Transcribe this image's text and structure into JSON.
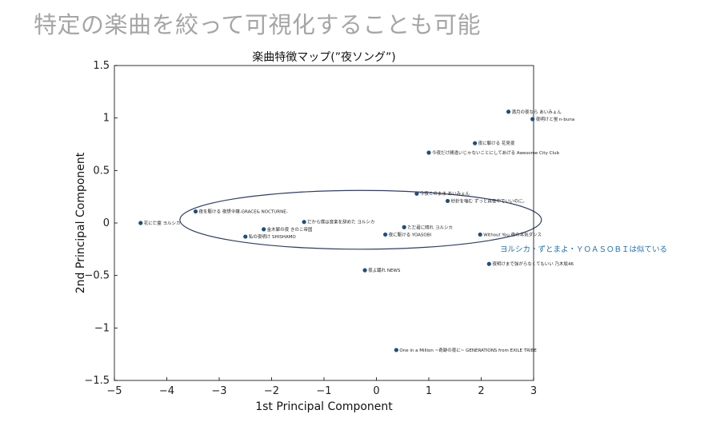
{
  "heading": "特定の楽曲を絞って可視化することも可能",
  "chart_data": {
    "type": "scatter",
    "title": "楽曲特徴マップ(”夜ソング”)",
    "xlabel": "1st Principal Component",
    "ylabel": "2nd Principal Component",
    "xlim": [
      -5,
      3
    ],
    "ylim": [
      -1.5,
      1.5
    ],
    "xticks": [
      -5,
      -4,
      -3,
      -2,
      -1,
      0,
      1,
      2,
      3
    ],
    "yticks": [
      -1.5,
      -1,
      -0.5,
      0,
      0.5,
      1,
      1.5
    ],
    "marker_color": "#1f4e79",
    "points": [
      {
        "x": 2.52,
        "y": 1.06,
        "label": "満月の夜なら あいみょん"
      },
      {
        "x": 2.98,
        "y": 0.99,
        "label": "夜明けと蛍 n-buna"
      },
      {
        "x": 1.88,
        "y": 0.76,
        "label": "夜に駆ける 花見夜"
      },
      {
        "x": 1.0,
        "y": 0.67,
        "label": "今夜だけ間違いじゃないことにしてあげる Awesome City Club"
      },
      {
        "x": 0.77,
        "y": 0.28,
        "label": "今夜このまま あいみょん"
      },
      {
        "x": 1.36,
        "y": 0.21,
        "label": "秒針を噛む ずっと真夜中でいいのに。"
      },
      {
        "x": -4.5,
        "y": 0.0,
        "label": "花に亡霊 ヨルシカ"
      },
      {
        "x": -3.45,
        "y": 0.11,
        "label": "夜を駆ける 夜想令嬢-GRACE& NOCTURNE-"
      },
      {
        "x": -1.38,
        "y": 0.01,
        "label": "だから僕は音楽を辞めた ヨルシカ"
      },
      {
        "x": -2.15,
        "y": -0.06,
        "label": "金木犀の夜 きのこ帝国"
      },
      {
        "x": -2.5,
        "y": -0.13,
        "label": "私の夜明け SHISHAMO"
      },
      {
        "x": 0.53,
        "y": -0.04,
        "label": "ただ君に晴れ ヨルシカ"
      },
      {
        "x": 0.17,
        "y": -0.11,
        "label": "夜に駆ける YOASOBI"
      },
      {
        "x": 1.98,
        "y": -0.11,
        "label": "Without You 夜の本気ダンス"
      },
      {
        "x": 2.15,
        "y": -0.39,
        "label": "夜明けまで強がらなくてもいい 乃木坂46"
      },
      {
        "x": -0.22,
        "y": -0.45,
        "label": "夜よ踊れ NEWS"
      },
      {
        "x": 0.38,
        "y": -1.21,
        "label": "One in a Million ~奇跡の夜に~ GENERATIONS from EXILE TRIBE"
      }
    ],
    "annotation": "ヨルシカ・ずとまよ・ＹＯＡＳＯＢＩは似ている",
    "highlight": {
      "shape": "ellipse",
      "cx": -0.3,
      "cy": 0.03,
      "rx": 3.45,
      "ry": 0.28,
      "color": "#2e3d6b"
    }
  }
}
